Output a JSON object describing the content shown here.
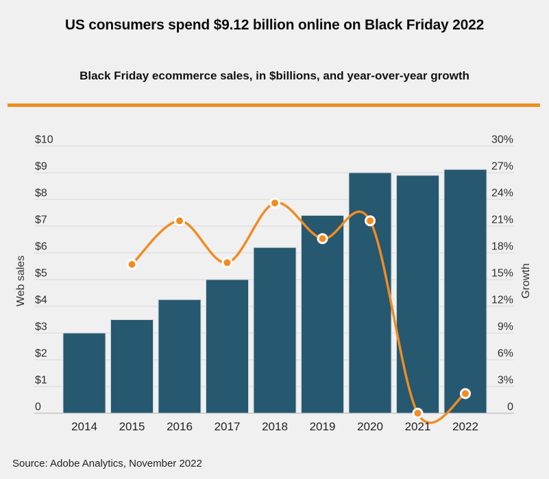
{
  "colors": {
    "background": "#f0f0f1",
    "bar_fill": "#26586f",
    "bar_stroke": "#cdd6da",
    "line": "#f18c21",
    "marker_fill": "#f18c21",
    "marker_ring": "#ffffff",
    "divider": "#ee8d20",
    "gridline": "#d9d9d9",
    "axis_line": "#bfc5c9",
    "tick_text": "#2d2d2d",
    "axis_title_text": "#333333"
  },
  "chart_data": {
    "type": "bar",
    "subtype": "combo-bar-line-dual-axis",
    "title": "US consumers spend $9.12 billion online on Black Friday 2022",
    "subtitle": "Black Friday ecommerce sales, in $billions, and year-over-year growth",
    "source": "Source: Adobe Analytics, November 2022",
    "categories": [
      "2014",
      "2015",
      "2016",
      "2017",
      "2018",
      "2019",
      "2020",
      "2021",
      "2022"
    ],
    "series": [
      {
        "name": "Web sales",
        "type": "bar",
        "axis": "left",
        "unit": "$ billions",
        "values": [
          3.0,
          3.5,
          4.25,
          5.0,
          6.2,
          7.4,
          9.0,
          8.9,
          9.12
        ]
      },
      {
        "name": "Growth",
        "type": "line",
        "axis": "right",
        "unit": "%",
        "values": [
          null,
          16.7,
          21.6,
          16.9,
          23.6,
          19.6,
          21.6,
          0,
          2.2
        ]
      }
    ],
    "left_axis": {
      "label": "Web sales",
      "range": [
        0,
        10
      ],
      "tick_values": [
        10,
        9,
        8,
        7,
        6,
        5,
        4,
        3,
        2,
        1,
        0
      ],
      "tick_labels": [
        "$10",
        "$9",
        "$8",
        "$7",
        "$6",
        "$5",
        "$4",
        "$3",
        "$2",
        "$1",
        "0"
      ]
    },
    "right_axis": {
      "label": "Growth",
      "range": [
        0,
        30
      ],
      "tick_values": [
        30,
        27,
        24,
        21,
        18,
        15,
        12,
        9,
        6,
        3,
        0
      ],
      "tick_labels": [
        "30%",
        "27%",
        "24%",
        "21%",
        "18%",
        "15%",
        "12%",
        "9%",
        "6%",
        "3%",
        "0"
      ]
    },
    "grid": true,
    "legend": "none"
  }
}
